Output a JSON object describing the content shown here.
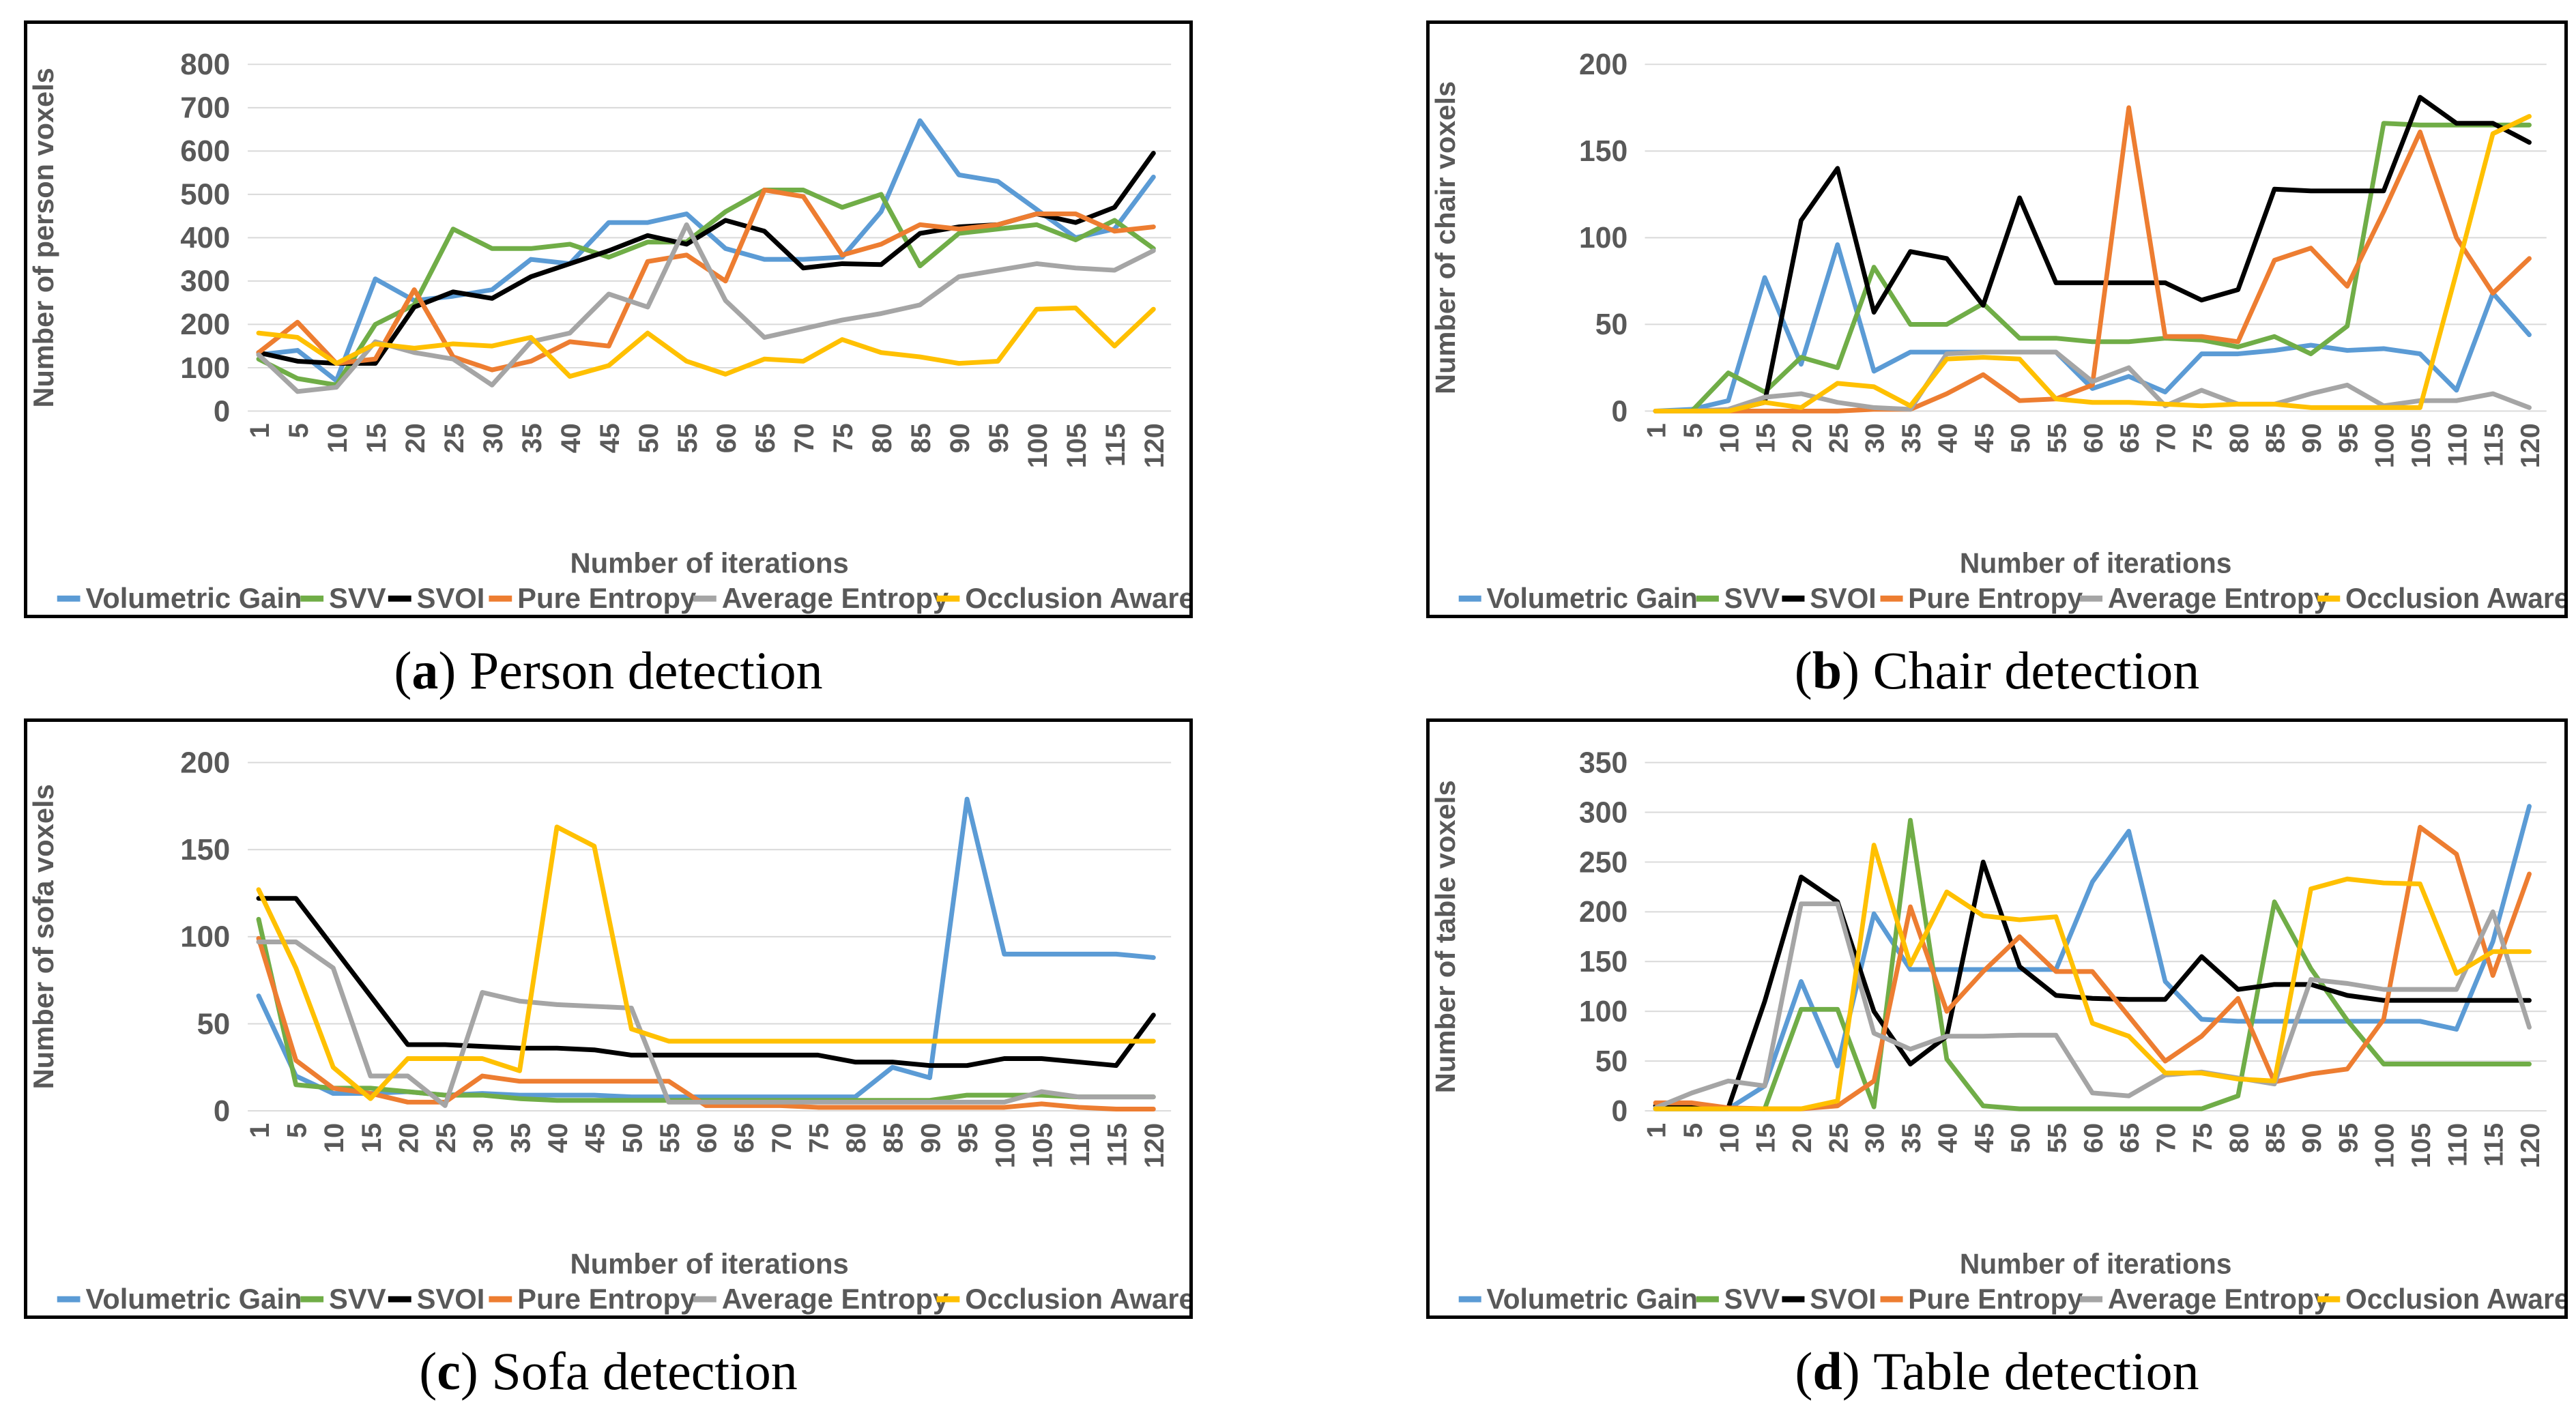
{
  "figure": {
    "background": "#FFFFFF",
    "border_color": "#000000",
    "gridline_color": "#D9D9D9",
    "text_color": "#595959",
    "x_axis_label": "Number of iterations"
  },
  "chart_data": [
    {
      "id": "person",
      "type": "line",
      "caption_letter": "a",
      "caption_text": "Person detection",
      "ylabel": "Number of person voxels",
      "xlabel": "Number of iterations",
      "ylim": [
        0,
        800
      ],
      "ytick_step": 100,
      "grid": true,
      "legend_position": "bottom",
      "x_tick_labels": [
        1,
        5,
        10,
        15,
        20,
        25,
        30,
        35,
        40,
        45,
        50,
        55,
        60,
        65,
        70,
        75,
        80,
        85,
        90,
        95,
        100,
        105,
        115,
        120
      ],
      "series": [
        {
          "name": "Volumetric Gain",
          "color": "#5B9BD5",
          "values": [
            130,
            140,
            70,
            305,
            255,
            265,
            280,
            350,
            340,
            435,
            435,
            455,
            375,
            350,
            350,
            355,
            460,
            670,
            545,
            530,
            465,
            400,
            420,
            540
          ]
        },
        {
          "name": "SVV",
          "color": "#70AD47",
          "values": [
            120,
            75,
            60,
            200,
            245,
            420,
            375,
            375,
            385,
            355,
            390,
            390,
            460,
            510,
            510,
            470,
            500,
            335,
            410,
            420,
            430,
            395,
            440,
            375
          ]
        },
        {
          "name": "SVOI",
          "color": "#000000",
          "values": [
            135,
            115,
            110,
            110,
            240,
            275,
            260,
            310,
            340,
            370,
            405,
            385,
            440,
            415,
            330,
            340,
            338,
            410,
            425,
            430,
            455,
            435,
            470,
            595
          ]
        },
        {
          "name": "Pure Entropy",
          "color": "#ED7D31",
          "values": [
            135,
            205,
            110,
            120,
            280,
            125,
            95,
            115,
            160,
            150,
            345,
            360,
            300,
            510,
            495,
            360,
            385,
            430,
            420,
            430,
            455,
            455,
            415,
            425
          ]
        },
        {
          "name": "Average Entropy",
          "color": "#A5A5A5",
          "values": [
            130,
            45,
            55,
            160,
            135,
            120,
            60,
            160,
            180,
            270,
            240,
            430,
            255,
            170,
            190,
            210,
            225,
            245,
            310,
            325,
            340,
            330,
            325,
            370
          ]
        },
        {
          "name": "Occlusion Aware",
          "color": "#FFC000",
          "values": [
            180,
            170,
            110,
            155,
            145,
            155,
            150,
            170,
            80,
            105,
            180,
            115,
            85,
            120,
            115,
            165,
            135,
            125,
            110,
            115,
            235,
            238,
            150,
            235
          ]
        }
      ]
    },
    {
      "id": "chair",
      "type": "line",
      "caption_letter": "b",
      "caption_text": "Chair detection",
      "ylabel": "Number of chair voxels",
      "xlabel": "Number of iterations",
      "ylim": [
        0,
        200
      ],
      "ytick_step": 50,
      "grid": true,
      "legend_position": "bottom",
      "x_tick_labels": [
        1,
        5,
        10,
        15,
        20,
        25,
        30,
        35,
        40,
        45,
        50,
        55,
        60,
        65,
        70,
        75,
        80,
        85,
        90,
        95,
        100,
        105,
        110,
        115,
        120
      ],
      "series": [
        {
          "name": "Volumetric Gain",
          "color": "#5B9BD5",
          "values": [
            0,
            1,
            6,
            77,
            27,
            96,
            23,
            34,
            34,
            34,
            34,
            34,
            13,
            20,
            11,
            33,
            33,
            35,
            38,
            35,
            36,
            33,
            12,
            68,
            44
          ]
        },
        {
          "name": "SVV",
          "color": "#70AD47",
          "values": [
            0,
            0,
            22,
            11,
            31,
            25,
            83,
            50,
            50,
            62,
            42,
            42,
            40,
            40,
            42,
            41,
            37,
            43,
            33,
            49,
            166,
            165,
            165,
            165,
            165
          ]
        },
        {
          "name": "SVOI",
          "color": "#000000",
          "values": [
            0,
            0,
            0,
            5,
            110,
            140,
            57,
            92,
            88,
            61,
            123,
            74,
            74,
            74,
            74,
            64,
            70,
            128,
            127,
            127,
            127,
            181,
            166,
            166,
            155
          ]
        },
        {
          "name": "Pure Entropy",
          "color": "#ED7D31",
          "values": [
            0,
            0,
            0,
            0,
            0,
            0,
            1,
            1,
            10,
            21,
            6,
            7,
            15,
            175,
            43,
            43,
            40,
            87,
            94,
            72,
            115,
            161,
            100,
            68,
            88
          ]
        },
        {
          "name": "Average Entropy",
          "color": "#A5A5A5",
          "values": [
            0,
            0,
            1,
            8,
            10,
            5,
            2,
            1,
            33,
            34,
            34,
            34,
            17,
            25,
            3,
            12,
            4,
            4,
            10,
            15,
            3,
            6,
            6,
            10,
            2
          ]
        },
        {
          "name": "Occlusion Aware",
          "color": "#FFC000",
          "values": [
            0,
            0,
            0,
            5,
            2,
            16,
            14,
            3,
            30,
            31,
            30,
            7,
            5,
            5,
            4,
            3,
            4,
            4,
            2,
            2,
            2,
            2,
            80,
            160,
            170
          ]
        }
      ]
    },
    {
      "id": "sofa",
      "type": "line",
      "caption_letter": "c",
      "caption_text": "Sofa detection",
      "ylabel": "Number of sofa voxels",
      "xlabel": "Number of iterations",
      "ylim": [
        0,
        200
      ],
      "ytick_step": 50,
      "grid": true,
      "legend_position": "bottom",
      "x_tick_labels": [
        1,
        5,
        10,
        15,
        20,
        25,
        30,
        35,
        40,
        45,
        50,
        55,
        60,
        65,
        70,
        75,
        80,
        85,
        90,
        95,
        100,
        105,
        110,
        115,
        120
      ],
      "series": [
        {
          "name": "Volumetric Gain",
          "color": "#5B9BD5",
          "values": [
            66,
            20,
            10,
            10,
            11,
            9,
            10,
            9,
            9,
            9,
            8,
            8,
            8,
            8,
            8,
            8,
            8,
            25,
            19,
            179,
            90,
            90,
            90,
            90,
            88
          ]
        },
        {
          "name": "SVV",
          "color": "#70AD47",
          "values": [
            110,
            15,
            13,
            13,
            11,
            9,
            9,
            7,
            6,
            6,
            6,
            6,
            6,
            6,
            6,
            6,
            6,
            6,
            6,
            9,
            9,
            9,
            8,
            8,
            8
          ]
        },
        {
          "name": "SVOI",
          "color": "#000000",
          "values": [
            122,
            122,
            94,
            66,
            38,
            38,
            37,
            36,
            36,
            35,
            32,
            32,
            32,
            32,
            32,
            32,
            28,
            28,
            26,
            26,
            30,
            30,
            28,
            26,
            55
          ]
        },
        {
          "name": "Pure Entropy",
          "color": "#ED7D31",
          "values": [
            99,
            29,
            13,
            10,
            5,
            5,
            20,
            17,
            17,
            17,
            17,
            17,
            3,
            3,
            3,
            2,
            2,
            2,
            2,
            2,
            2,
            4,
            2,
            1,
            1
          ]
        },
        {
          "name": "Average Entropy",
          "color": "#A5A5A5",
          "values": [
            97,
            97,
            82,
            20,
            20,
            3,
            68,
            63,
            61,
            60,
            59,
            5,
            5,
            5,
            5,
            5,
            5,
            5,
            5,
            5,
            5,
            11,
            8,
            8,
            8
          ]
        },
        {
          "name": "Occlusion Aware",
          "color": "#FFC000",
          "values": [
            127,
            82,
            25,
            7,
            30,
            30,
            30,
            23,
            163,
            152,
            47,
            40,
            40,
            40,
            40,
            40,
            40,
            40,
            40,
            40,
            40,
            40,
            40,
            40,
            40
          ]
        }
      ]
    },
    {
      "id": "table",
      "type": "line",
      "caption_letter": "d",
      "caption_text": "Table detection",
      "ylabel": "Number of table voxels",
      "xlabel": "Number of iterations",
      "ylim": [
        0,
        350
      ],
      "ytick_step": 50,
      "grid": true,
      "legend_position": "bottom",
      "x_tick_labels": [
        1,
        5,
        10,
        15,
        20,
        25,
        30,
        35,
        40,
        45,
        50,
        55,
        60,
        65,
        70,
        75,
        80,
        85,
        90,
        95,
        100,
        105,
        110,
        115,
        120
      ],
      "series": [
        {
          "name": "Volumetric Gain",
          "color": "#5B9BD5",
          "values": [
            2,
            2,
            2,
            25,
            130,
            45,
            198,
            142,
            142,
            142,
            142,
            142,
            230,
            281,
            130,
            92,
            90,
            90,
            90,
            90,
            90,
            90,
            82,
            170,
            306
          ]
        },
        {
          "name": "SVV",
          "color": "#70AD47",
          "values": [
            2,
            2,
            2,
            2,
            102,
            102,
            4,
            292,
            52,
            5,
            2,
            2,
            2,
            2,
            2,
            2,
            15,
            210,
            143,
            91,
            47,
            47,
            47,
            47,
            47
          ]
        },
        {
          "name": "SVOI",
          "color": "#000000",
          "values": [
            5,
            4,
            3,
            110,
            235,
            210,
            100,
            47,
            75,
            250,
            145,
            116,
            113,
            112,
            112,
            155,
            122,
            127,
            127,
            116,
            111,
            111,
            111,
            111,
            111
          ]
        },
        {
          "name": "Pure Entropy",
          "color": "#ED7D31",
          "values": [
            8,
            8,
            3,
            2,
            2,
            5,
            30,
            205,
            100,
            140,
            175,
            140,
            140,
            95,
            50,
            75,
            113,
            29,
            37,
            42,
            92,
            285,
            258,
            136,
            238
          ]
        },
        {
          "name": "Average Entropy",
          "color": "#A5A5A5",
          "values": [
            3,
            18,
            30,
            25,
            208,
            208,
            78,
            62,
            75,
            75,
            76,
            76,
            18,
            15,
            36,
            39,
            33,
            27,
            132,
            128,
            122,
            122,
            122,
            200,
            84
          ]
        },
        {
          "name": "Occlusion Aware",
          "color": "#FFC000",
          "values": [
            2,
            2,
            2,
            2,
            2,
            10,
            267,
            147,
            220,
            196,
            192,
            195,
            88,
            75,
            38,
            38,
            32,
            30,
            223,
            233,
            229,
            228,
            138,
            160,
            160
          ]
        }
      ]
    }
  ]
}
